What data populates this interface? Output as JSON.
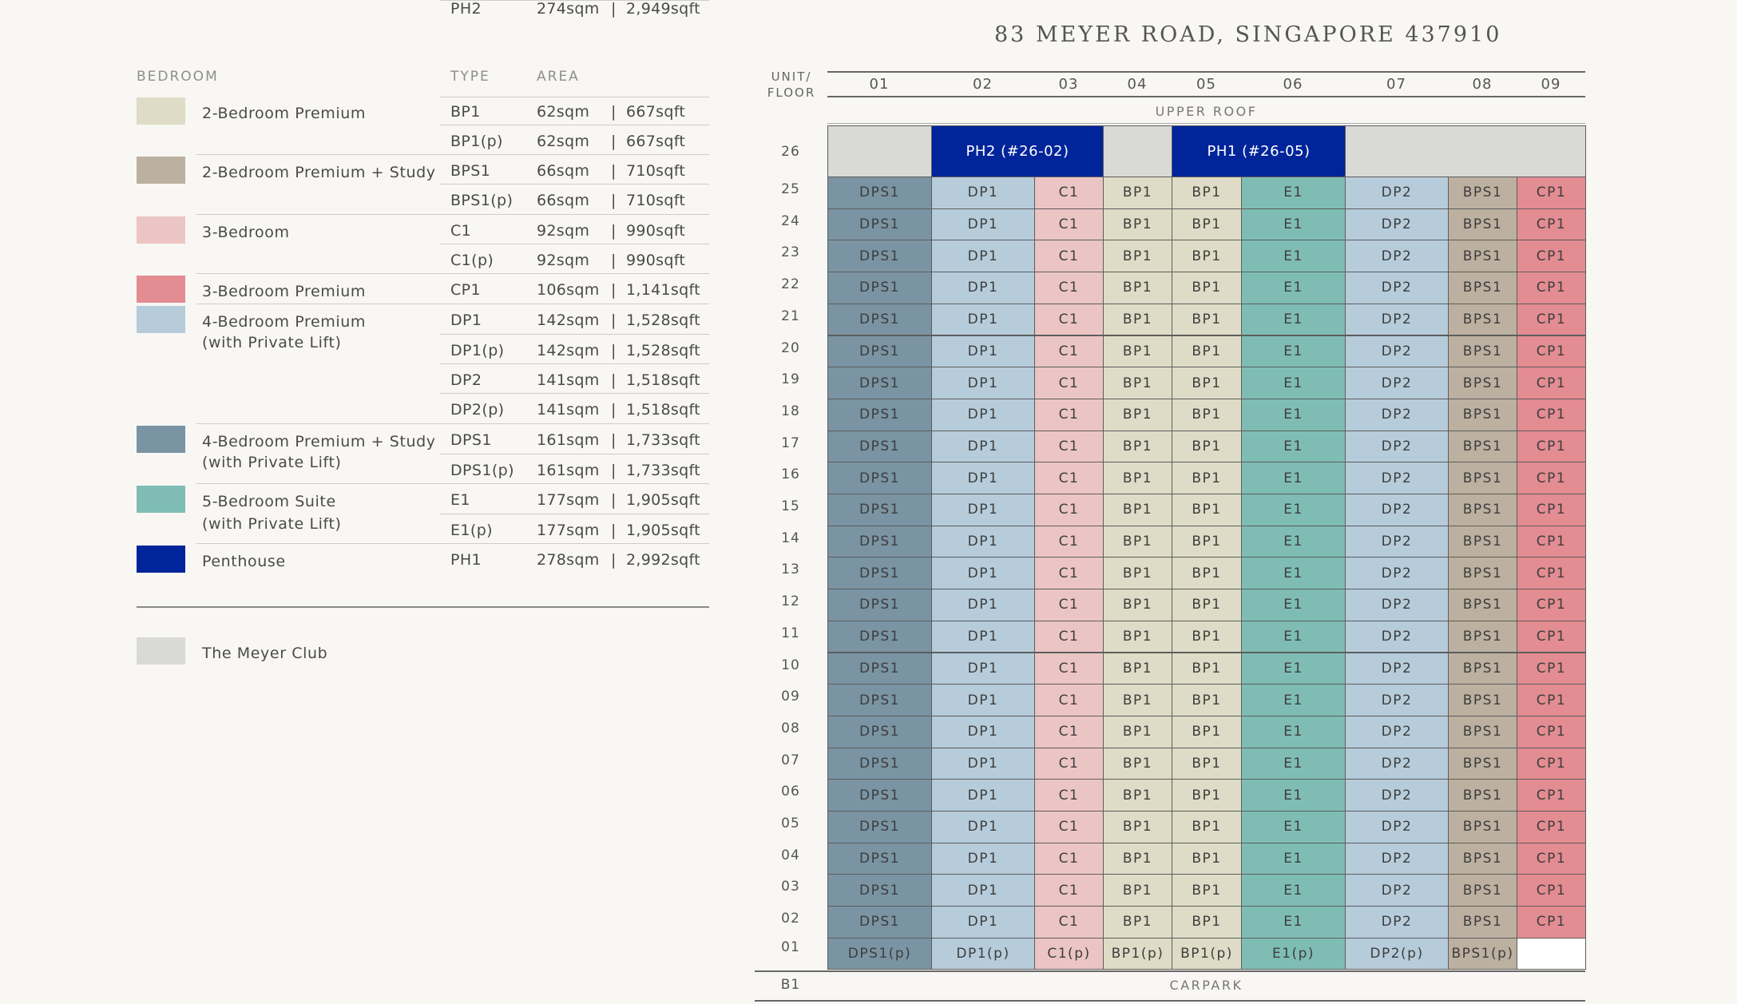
{
  "colors": {
    "BP": "#dedcc6",
    "BPS": "#bcb0a0",
    "C": "#ebc5c3",
    "CP": "#e38c92",
    "DP": "#b6ccdb",
    "DPS": "#7a94a3",
    "E": "#7fbdb4",
    "PH": "#00249a",
    "CLUB": "#d9d9d6"
  },
  "legend": {
    "headers": {
      "bedroom": "BEDROOM",
      "type": "TYPE",
      "area": "AREA"
    },
    "groups": [
      {
        "swatch": "BP",
        "label": [
          "2-Bedroom Premium"
        ],
        "rows": [
          {
            "type": "BP1",
            "sqm": "62sqm",
            "sqft": "667sqft"
          },
          {
            "type": "BP1(p)",
            "sqm": "62sqm",
            "sqft": "667sqft"
          }
        ]
      },
      {
        "swatch": "BPS",
        "label": [
          "2-Bedroom Premium + Study"
        ],
        "rows": [
          {
            "type": "BPS1",
            "sqm": "66sqm",
            "sqft": "710sqft"
          },
          {
            "type": "BPS1(p)",
            "sqm": "66sqm",
            "sqft": "710sqft"
          }
        ]
      },
      {
        "swatch": "C",
        "label": [
          "3-Bedroom"
        ],
        "rows": [
          {
            "type": "C1",
            "sqm": "92sqm",
            "sqft": "990sqft"
          },
          {
            "type": "C1(p)",
            "sqm": "92sqm",
            "sqft": "990sqft"
          }
        ]
      },
      {
        "swatch": "CP",
        "label": [
          "3-Bedroom Premium"
        ],
        "rows": [
          {
            "type": "CP1",
            "sqm": "106sqm",
            "sqft": "1,141sqft"
          }
        ]
      },
      {
        "swatch": "DP",
        "label": [
          "4-Bedroom Premium",
          "(with Private Lift)"
        ],
        "rows": [
          {
            "type": "DP1",
            "sqm": "142sqm",
            "sqft": "1,528sqft"
          },
          {
            "type": "DP1(p)",
            "sqm": "142sqm",
            "sqft": "1,528sqft"
          },
          {
            "type": "DP2",
            "sqm": "141sqm",
            "sqft": "1,518sqft"
          },
          {
            "type": "DP2(p)",
            "sqm": "141sqm",
            "sqft": "1,518sqft"
          }
        ]
      },
      {
        "swatch": "DPS",
        "label": [
          "4-Bedroom Premium + Study",
          "(with Private Lift)"
        ],
        "rows": [
          {
            "type": "DPS1",
            "sqm": "161sqm",
            "sqft": "1,733sqft"
          },
          {
            "type": "DPS1(p)",
            "sqm": "161sqm",
            "sqft": "1,733sqft"
          }
        ]
      },
      {
        "swatch": "E",
        "label": [
          "5-Bedroom Suite",
          "(with Private Lift)"
        ],
        "rows": [
          {
            "type": "E1",
            "sqm": "177sqm",
            "sqft": "1,905sqft"
          },
          {
            "type": "E1(p)",
            "sqm": "177sqm",
            "sqft": "1,905sqft"
          }
        ]
      },
      {
        "swatch": "PH",
        "label": [
          "Penthouse"
        ],
        "rows": [
          {
            "type": "PH1",
            "sqm": "278sqm",
            "sqft": "2,992sqft"
          },
          {
            "type": "PH2",
            "sqm": "274sqm",
            "sqft": "2,949sqft"
          }
        ]
      }
    ],
    "separator": "|",
    "club": {
      "swatch": "CLUB",
      "label": "The Meyer Club"
    }
  },
  "chart": {
    "address": "83 MEYER ROAD, SINGAPORE 437910",
    "corner": [
      "UNIT/",
      "FLOOR"
    ],
    "units": [
      "01",
      "02",
      "03",
      "04",
      "05",
      "06",
      "07",
      "08",
      "09"
    ],
    "upper_roof": "UPPER ROOF",
    "carpark": "CARPARK",
    "basement": "B1",
    "typical_types": [
      "DPS1",
      "DP1",
      "C1",
      "BP1",
      "BP1",
      "E1",
      "DP2",
      "BPS1",
      "CP1"
    ],
    "typical_colors": [
      "DPS",
      "DP",
      "C",
      "BP",
      "BP",
      "E",
      "DP",
      "BPS",
      "CP"
    ],
    "typical_floors": [
      "25",
      "24",
      "23",
      "22",
      "21",
      "20",
      "19",
      "18",
      "17",
      "16",
      "15",
      "14",
      "13",
      "12",
      "11",
      "10",
      "09",
      "08",
      "07",
      "06",
      "05",
      "04",
      "03",
      "02"
    ],
    "penthouse_floor": "26",
    "penthouse_row": [
      {
        "label": "",
        "color": "CLUB",
        "span": 1
      },
      {
        "label": "PH2 (#26-02)",
        "color": "PH",
        "span": 2
      },
      {
        "label": "",
        "color": "CLUB",
        "span": 1
      },
      {
        "label": "PH1 (#26-05)",
        "color": "PH",
        "span": 2
      },
      {
        "label": "",
        "color": "CLUB",
        "span": 3
      }
    ],
    "ground_floor": "01",
    "ground_types": [
      "DPS1(p)",
      "DP1(p)",
      "C1(p)",
      "BP1(p)",
      "BP1(p)",
      "E1(p)",
      "DP2(p)",
      "BPS1(p)",
      ""
    ],
    "ground_colors": [
      "DPS",
      "DP",
      "C",
      "BP",
      "BP",
      "E",
      "DP",
      "BPS",
      "WHITE"
    ]
  }
}
